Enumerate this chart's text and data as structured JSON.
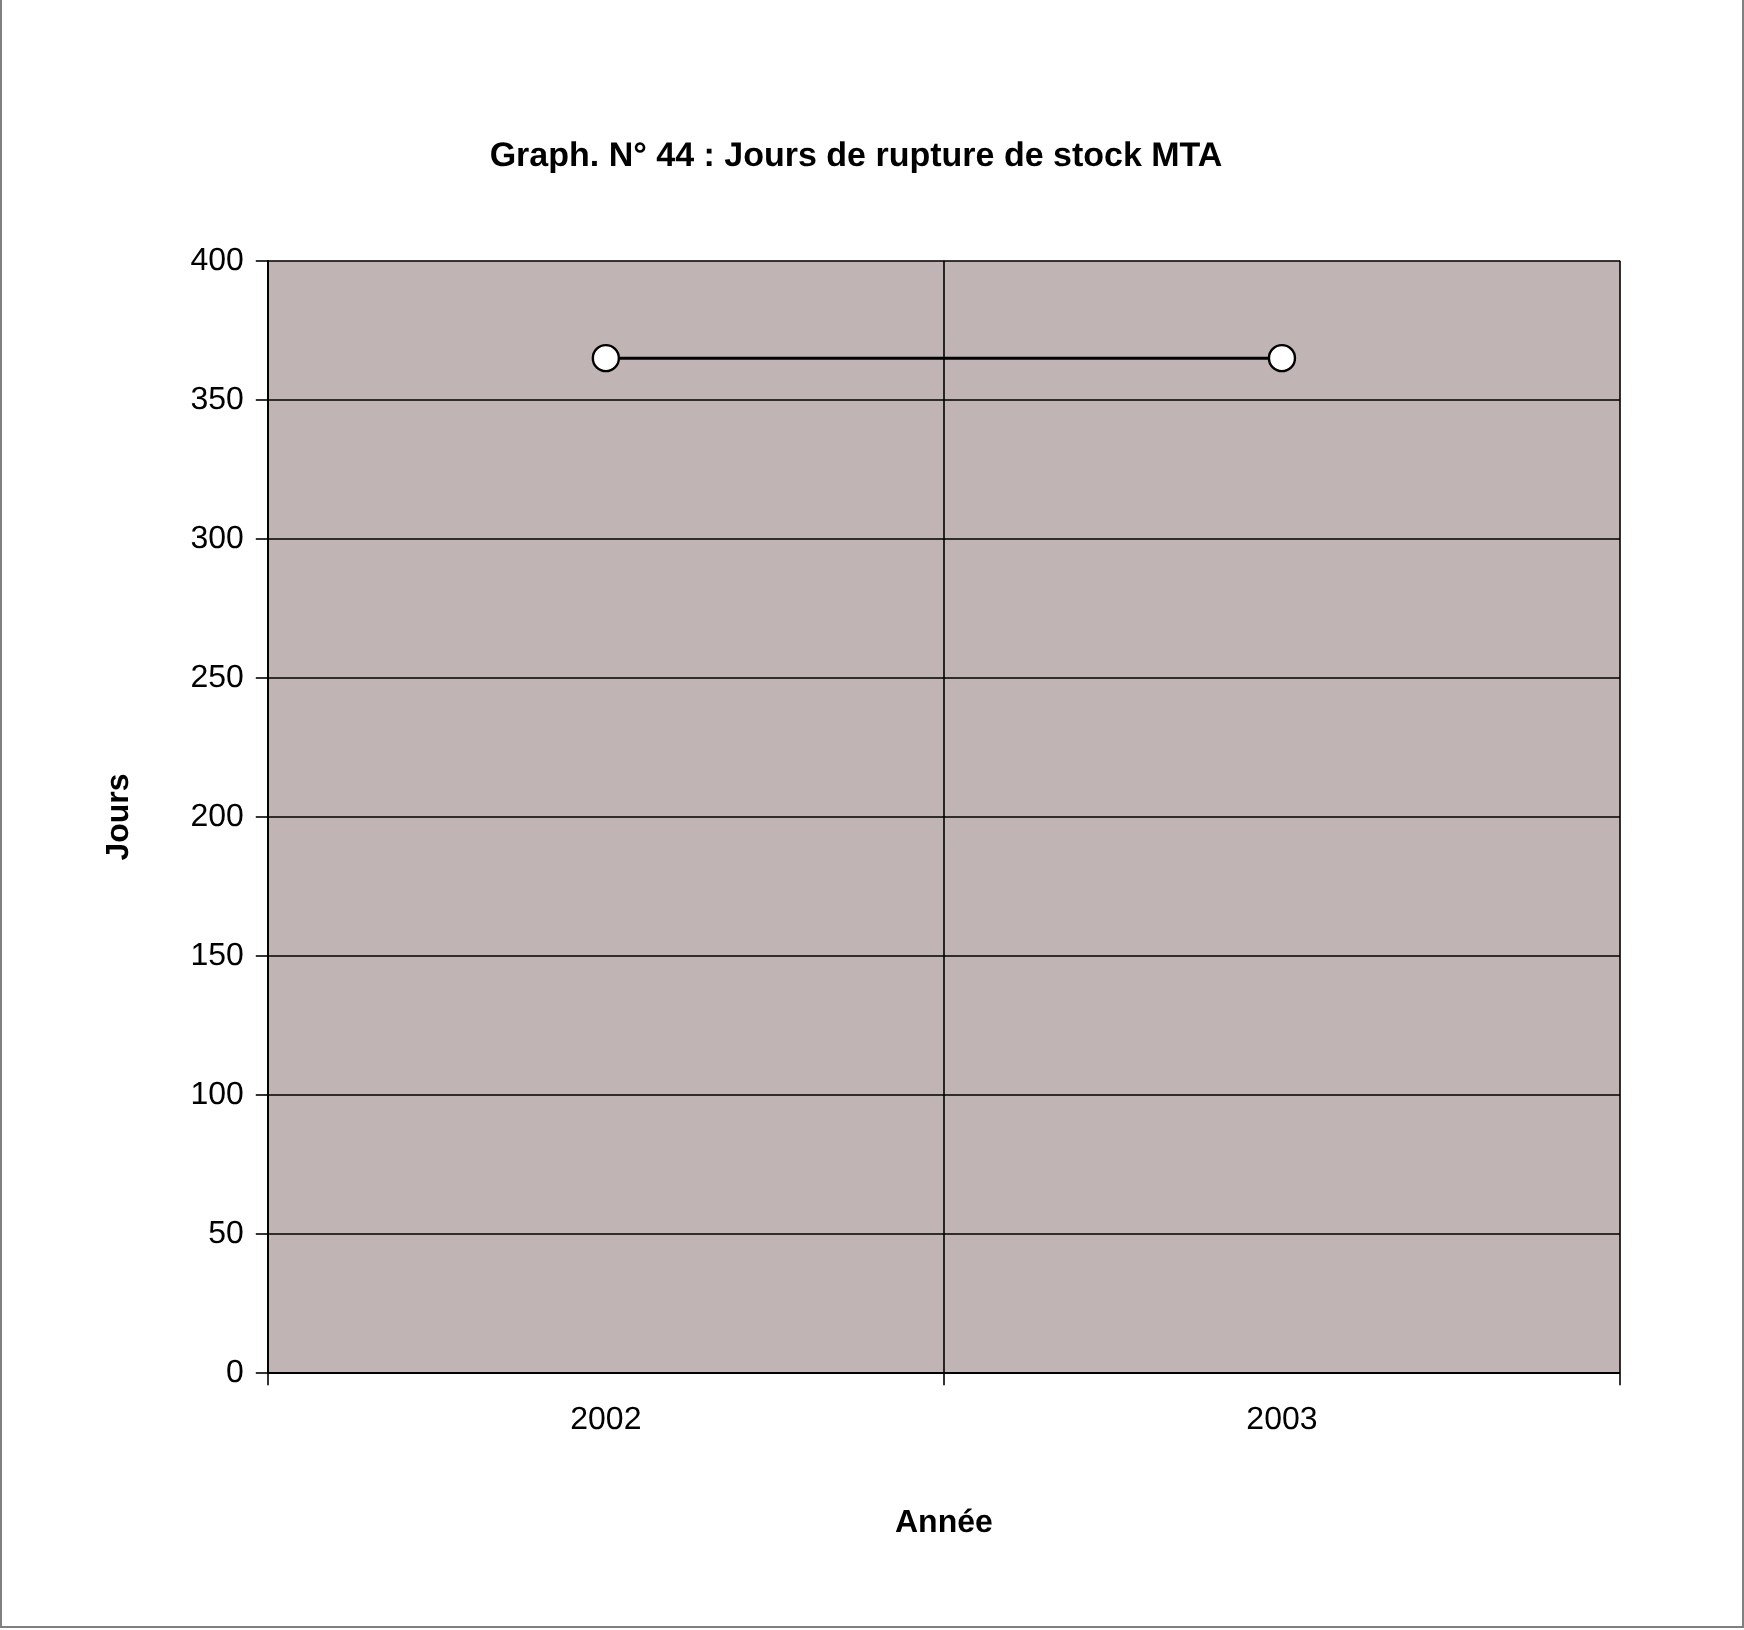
{
  "chart_data": {
    "type": "line",
    "title": "Graph. N° 44 : Jours de rupture de stock MTA",
    "xlabel": "Année",
    "ylabel": "Jours",
    "categories": [
      "2002",
      "2003"
    ],
    "series": [
      {
        "color": "#000000",
        "values": [
          365,
          365
        ]
      }
    ],
    "ylim": [
      0,
      400
    ],
    "yticks": [
      0,
      50,
      100,
      150,
      200,
      250,
      300,
      350,
      400
    ],
    "grid": true,
    "legend": false,
    "marker": "circle",
    "line_style": "solid"
  }
}
